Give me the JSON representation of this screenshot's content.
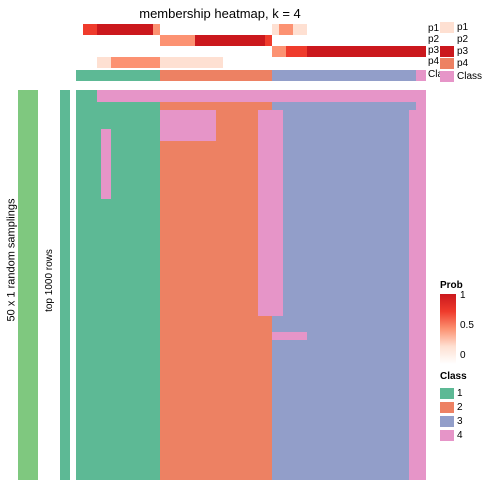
{
  "title": "membership heatmap, k = 4",
  "ylabels": {
    "outer": "50 x 1 random samplings",
    "inner": "top 1000 rows"
  },
  "colors": {
    "class1": "#5db995",
    "class2": "#ed8163",
    "class3": "#929ec9",
    "class4": "#e695c8",
    "sidebar": "#7fc87f",
    "white": "#ffffff",
    "p_low": "#fee0d2",
    "p_mid": "#fc9272",
    "p_high": "#ef3b2c",
    "p_max": "#cb181d"
  },
  "main_columns": [
    {
      "w": 0.06,
      "c": "class1"
    },
    {
      "w": 0.18,
      "c": "class1"
    },
    {
      "w": 0.3,
      "c": "class2"
    },
    {
      "w": 0.02,
      "c": "class2"
    },
    {
      "w": 0.3,
      "c": "class3"
    },
    {
      "w": 0.11,
      "c": "class3"
    },
    {
      "w": 0.03,
      "c": "class4"
    }
  ],
  "class_band": [
    {
      "w": 0.24,
      "c": "class1"
    },
    {
      "w": 0.32,
      "c": "class2"
    },
    {
      "w": 0.41,
      "c": "class3"
    },
    {
      "w": 0.03,
      "c": "class4"
    }
  ],
  "pink_overlays": [
    {
      "l": 0.06,
      "t": 0.0,
      "w": 0.94,
      "h": 0.03
    },
    {
      "l": 0.97,
      "t": 0.0,
      "w": 0.03,
      "h": 0.02
    },
    {
      "l": 0.07,
      "t": 0.1,
      "w": 0.03,
      "h": 0.18
    },
    {
      "l": 0.24,
      "t": 0.05,
      "w": 0.16,
      "h": 0.08
    },
    {
      "l": 0.52,
      "t": 0.05,
      "w": 0.07,
      "h": 0.53
    },
    {
      "l": 0.52,
      "t": 0.05,
      "w": 0.04,
      "h": 0.42
    },
    {
      "l": 0.56,
      "t": 0.62,
      "w": 0.1,
      "h": 0.02
    },
    {
      "l": 0.95,
      "t": 0.05,
      "w": 0.02,
      "h": 0.95
    },
    {
      "l": 0.95,
      "t": 0.25,
      "w": 0.03,
      "h": 0.07
    }
  ],
  "annotation_rows": [
    {
      "label": "p1",
      "cells": [
        {
          "w": 0.02,
          "c": "white"
        },
        {
          "w": 0.04,
          "c": "p_high"
        },
        {
          "w": 0.16,
          "c": "p_max"
        },
        {
          "w": 0.02,
          "c": "p_mid"
        },
        {
          "w": 0.3,
          "c": "white"
        },
        {
          "w": 0.02,
          "c": "white"
        },
        {
          "w": 0.02,
          "c": "p_low"
        },
        {
          "w": 0.04,
          "c": "p_mid"
        },
        {
          "w": 0.04,
          "c": "p_low"
        },
        {
          "w": 0.34,
          "c": "white"
        }
      ]
    },
    {
      "label": "p2",
      "cells": [
        {
          "w": 0.24,
          "c": "white"
        },
        {
          "w": 0.1,
          "c": "p_mid"
        },
        {
          "w": 0.2,
          "c": "p_max"
        },
        {
          "w": 0.02,
          "c": "p_high"
        },
        {
          "w": 0.44,
          "c": "white"
        }
      ]
    },
    {
      "label": "p3",
      "cells": [
        {
          "w": 0.56,
          "c": "white"
        },
        {
          "w": 0.04,
          "c": "p_mid"
        },
        {
          "w": 0.06,
          "c": "p_high"
        },
        {
          "w": 0.31,
          "c": "p_max"
        },
        {
          "w": 0.03,
          "c": "p_max"
        }
      ]
    },
    {
      "label": "p4",
      "cells": [
        {
          "w": 0.06,
          "c": "white"
        },
        {
          "w": 0.04,
          "c": "p_low"
        },
        {
          "w": 0.14,
          "c": "p_mid"
        },
        {
          "w": 0.18,
          "c": "p_low"
        },
        {
          "w": 0.12,
          "c": "white"
        },
        {
          "w": 0.46,
          "c": "white"
        }
      ]
    }
  ],
  "ann_legend": [
    {
      "label": "p1",
      "c": "p_low"
    },
    {
      "label": "p2",
      "c": "white"
    },
    {
      "label": "p3",
      "c": "p_max"
    },
    {
      "label": "p4",
      "c": "class2"
    },
    {
      "label": "Class",
      "c": "class4"
    }
  ],
  "prob_legend": {
    "title": "Prob",
    "ticks": [
      "1",
      "0.5",
      "0"
    ],
    "gradient": [
      "#cb181d",
      "#ef3b2c",
      "#fc9272",
      "#fee0d2",
      "#ffffff"
    ]
  },
  "class_legend": {
    "title": "Class",
    "items": [
      {
        "label": "1",
        "c": "class1"
      },
      {
        "label": "2",
        "c": "class2"
      },
      {
        "label": "3",
        "c": "class3"
      },
      {
        "label": "4",
        "c": "class4"
      }
    ]
  }
}
